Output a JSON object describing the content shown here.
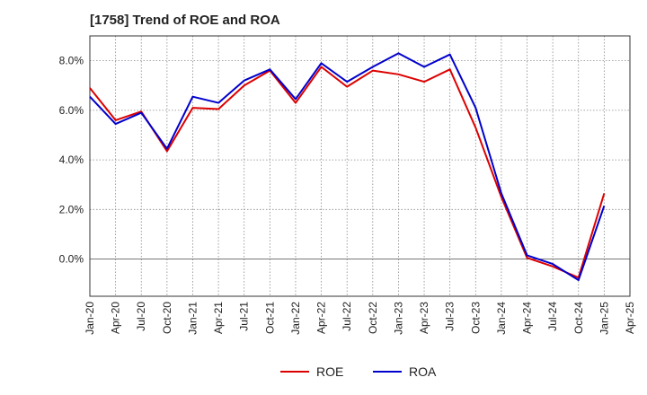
{
  "chart_data": {
    "type": "line",
    "title": "[1758]  Trend of ROE and ROA",
    "xlabel": "",
    "ylabel": "",
    "x": [
      "Jan-20",
      "Apr-20",
      "Jul-20",
      "Oct-20",
      "Jan-21",
      "Apr-21",
      "Jul-21",
      "Oct-21",
      "Jan-22",
      "Apr-22",
      "Jul-22",
      "Oct-22",
      "Jan-23",
      "Apr-23",
      "Jul-23",
      "Oct-23",
      "Jan-24",
      "Apr-24",
      "Jul-24",
      "Oct-24",
      "Jan-25"
    ],
    "x_ticks": [
      "Jan-20",
      "Apr-20",
      "Jul-20",
      "Oct-20",
      "Jan-21",
      "Apr-21",
      "Jul-21",
      "Oct-21",
      "Jan-22",
      "Apr-22",
      "Jul-22",
      "Oct-22",
      "Jan-23",
      "Apr-23",
      "Jul-23",
      "Oct-23",
      "Jan-24",
      "Apr-24",
      "Jul-24",
      "Oct-24",
      "Jan-25",
      "Apr-25"
    ],
    "y_ticks": [
      "0.0%",
      "2.0%",
      "4.0%",
      "6.0%",
      "8.0%"
    ],
    "y_tick_values": [
      0,
      2,
      4,
      6,
      8
    ],
    "ylim": [
      -1.5,
      9.0
    ],
    "grid": true,
    "legend_position": "bottom-center",
    "series": [
      {
        "name": "ROE",
        "color": "#dd0000",
        "values": [
          6.9,
          5.6,
          5.95,
          4.35,
          6.1,
          6.05,
          7.0,
          7.6,
          6.3,
          7.75,
          6.95,
          7.6,
          7.45,
          7.15,
          7.65,
          5.3,
          2.5,
          0.05,
          -0.3,
          -0.75,
          2.65
        ]
      },
      {
        "name": "ROA",
        "color": "#0000cc",
        "values": [
          6.55,
          5.45,
          5.9,
          4.45,
          6.55,
          6.3,
          7.2,
          7.65,
          6.45,
          7.9,
          7.15,
          7.75,
          8.3,
          7.75,
          8.25,
          6.1,
          2.65,
          0.15,
          -0.2,
          -0.85,
          2.15
        ]
      }
    ]
  }
}
